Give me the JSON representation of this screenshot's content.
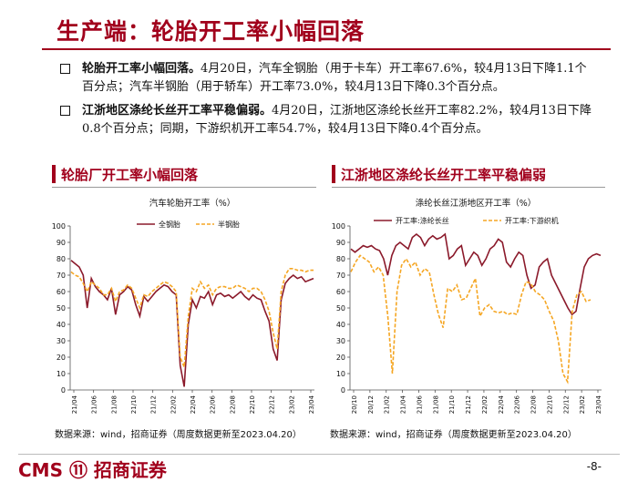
{
  "page": {
    "title": "生产端：轮胎开工率小幅回落",
    "bullets": [
      {
        "head": "轮胎开工率小幅回落。",
        "body": "4月20日，汽车全钢胎（用于卡车）开工率67.6%，较4月13日下降1.1个百分点；汽车半钢胎（用于轿车）开工率73.0%，较4月13日下降0.3个百分点。"
      },
      {
        "head": "江浙地区涤纶长丝开工率平稳偏弱。",
        "body": "4月20日，江浙地区涤纶长丝开工率82.2%，较4月13日下降0.8个百分点；同期，下游织机开工率54.7%，较4月13日下降0.4个百分点。"
      }
    ],
    "page_number": "-8-",
    "logo_text": "CMS ⑪ 招商证券"
  },
  "colors": {
    "primary": "#a1001c",
    "series1": "#8b1a2b",
    "series2": "#f5a623"
  },
  "chart_data": [
    {
      "type": "line",
      "section_title": "轮胎厂开工率小幅回落",
      "title": "汽车轮胎开工率（%）",
      "ylim": [
        0,
        100
      ],
      "yticks": [
        0,
        10,
        20,
        30,
        40,
        50,
        60,
        70,
        80,
        90,
        100
      ],
      "xticks": [
        "21/04",
        "21/06",
        "21/08",
        "21/10",
        "21/12",
        "22/02",
        "22/04",
        "22/06",
        "22/08",
        "22/10",
        "22/12",
        "23/02",
        "23/04"
      ],
      "source": "数据来源：wind，招商证券（周度数据更新至2023.04.20）",
      "series": [
        {
          "name": "全钢胎",
          "style": "solid",
          "values": [
            79,
            77,
            75,
            70,
            50,
            68,
            63,
            60,
            58,
            55,
            62,
            46,
            58,
            60,
            63,
            61,
            52,
            45,
            57,
            54,
            57,
            60,
            62,
            64,
            63,
            60,
            58,
            15,
            2,
            40,
            55,
            50,
            57,
            56,
            60,
            52,
            58,
            59,
            57,
            58,
            56,
            58,
            60,
            57,
            55,
            58,
            56,
            55,
            48,
            42,
            25,
            18,
            55,
            65,
            68,
            70,
            68,
            69,
            66,
            67,
            68
          ]
        },
        {
          "name": "半钢胎",
          "style": "dashed",
          "values": [
            72,
            70,
            69,
            65,
            60,
            66,
            64,
            62,
            58,
            58,
            62,
            54,
            60,
            61,
            64,
            62,
            56,
            50,
            58,
            57,
            60,
            62,
            64,
            66,
            65,
            63,
            60,
            20,
            14,
            45,
            62,
            60,
            66,
            62,
            64,
            58,
            62,
            63,
            63,
            62,
            62,
            64,
            63,
            62,
            60,
            62,
            62,
            60,
            55,
            48,
            35,
            25,
            60,
            70,
            74,
            74,
            73,
            73,
            72,
            73,
            73
          ]
        }
      ]
    },
    {
      "type": "line",
      "section_title": "江浙地区涤纶长丝开工率平稳偏弱",
      "title": "涤纶长丝江浙地区开工率（%）",
      "ylim": [
        0,
        100
      ],
      "yticks": [
        0,
        10,
        20,
        30,
        40,
        50,
        60,
        70,
        80,
        90,
        100
      ],
      "xticks": [
        "20/10",
        "20/12",
        "21/02",
        "21/04",
        "21/06",
        "21/08",
        "21/10",
        "21/12",
        "22/02",
        "22/04",
        "22/06",
        "22/08",
        "22/10",
        "22/12",
        "23/02",
        "23/04"
      ],
      "source": "数据来源：wind，招商证券（周度数据更新至2023.04.20）",
      "series": [
        {
          "name": "开工率:涤纶长丝",
          "style": "solid",
          "values": [
            86,
            84,
            86,
            88,
            87,
            88,
            86,
            85,
            80,
            70,
            82,
            88,
            90,
            88,
            86,
            93,
            95,
            93,
            88,
            92,
            94,
            92,
            93,
            95,
            80,
            82,
            86,
            88,
            76,
            80,
            84,
            82,
            76,
            80,
            86,
            88,
            92,
            90,
            78,
            75,
            80,
            84,
            82,
            70,
            62,
            64,
            75,
            78,
            80,
            70,
            65,
            60,
            55,
            50,
            46,
            48,
            62,
            75,
            80,
            82,
            83,
            82
          ]
        },
        {
          "name": "开工率:下游织机",
          "style": "dashed",
          "values": [
            72,
            78,
            82,
            80,
            78,
            72,
            75,
            70,
            45,
            10,
            60,
            76,
            80,
            75,
            78,
            70,
            74,
            72,
            58,
            46,
            38,
            62,
            60,
            64,
            55,
            56,
            62,
            68,
            45,
            50,
            52,
            48,
            47,
            48,
            46,
            47,
            46,
            58,
            66,
            65,
            60,
            58,
            55,
            48,
            42,
            30,
            10,
            5,
            48,
            58,
            60,
            54,
            55
          ]
        }
      ]
    }
  ]
}
